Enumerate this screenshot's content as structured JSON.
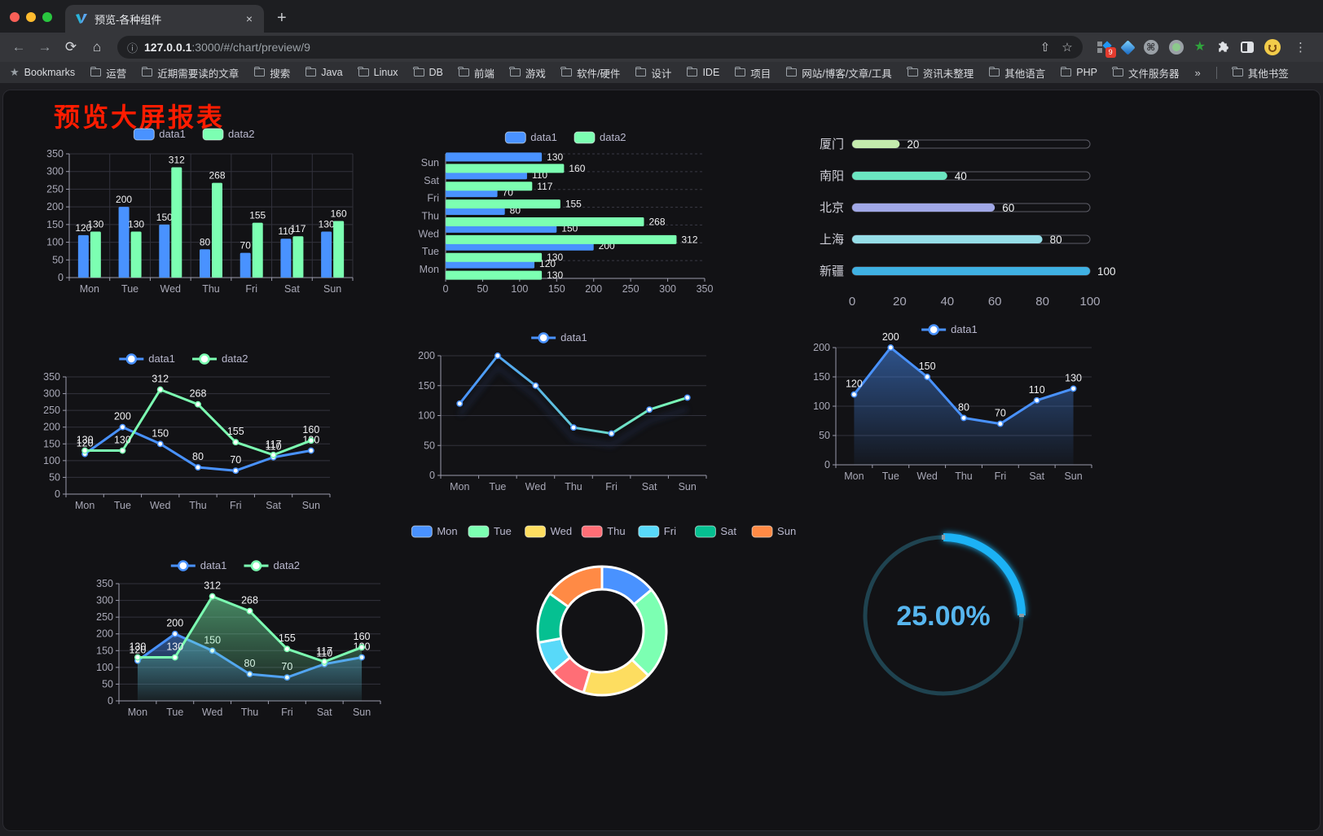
{
  "browser": {
    "tab": {
      "title": "预览-各种组件",
      "close": "×",
      "new_tab": "+"
    },
    "url": {
      "host": "127.0.0.1",
      "path": ":3000/#/chart/preview/9",
      "info_icon": "ⓘ"
    },
    "nav": {
      "back": "←",
      "forward": "→",
      "reload": "⟳",
      "home": "⌂",
      "share": "⇧",
      "star": "☆",
      "menu": "⋮"
    },
    "extensions_badge": "9",
    "bookmarks_label": "Bookmarks",
    "bookmarks": [
      "运营",
      "近期需要读的文章",
      "搜索",
      "Java",
      "Linux",
      "DB",
      "前端",
      "游戏",
      "软件/硬件",
      "设计",
      "IDE",
      "项目",
      "网站/博客/文章/工具",
      "资讯未整理",
      "其他语言",
      "PHP",
      "文件服务器"
    ],
    "overflow_chevron": "»",
    "other_bookmarks": "其他书签"
  },
  "page": {
    "title": "预览大屏报表"
  },
  "theme": {
    "axis": "#9b9bab",
    "grid": "#32323c",
    "tick_label": "#a8a8b6",
    "data_label": "#f0f0f2",
    "legend_text": "#b9b8ce",
    "blue": "#4992ff",
    "green": "#7cffb2"
  },
  "chart_data": [
    {
      "id": "bar-vertical",
      "type": "bar",
      "categories": [
        "Mon",
        "Tue",
        "Wed",
        "Thu",
        "Fri",
        "Sat",
        "Sun"
      ],
      "series": [
        {
          "name": "data1",
          "color": "#4992ff",
          "values": [
            120,
            200,
            150,
            80,
            70,
            110,
            130
          ]
        },
        {
          "name": "data2",
          "color": "#7cffb2",
          "values": [
            130,
            130,
            312,
            268,
            155,
            117,
            160
          ]
        }
      ],
      "ylim": [
        0,
        350
      ],
      "ystep": 50,
      "legend_position": "top",
      "grid": true
    },
    {
      "id": "bar-horizontal",
      "type": "hbar",
      "categories": [
        "Mon",
        "Tue",
        "Wed",
        "Thu",
        "Fri",
        "Sat",
        "Sun"
      ],
      "series": [
        {
          "name": "data1",
          "color": "#4992ff",
          "values": [
            120,
            200,
            150,
            80,
            70,
            110,
            130
          ]
        },
        {
          "name": "data2",
          "color": "#7cffb2",
          "values": [
            130,
            130,
            312,
            268,
            155,
            117,
            160
          ]
        }
      ],
      "xlim": [
        0,
        350
      ],
      "xstep": 50,
      "legend_position": "top"
    },
    {
      "id": "progress-bars",
      "type": "progress",
      "items": [
        {
          "label": "厦门",
          "value": 20,
          "color": "#c4ebad"
        },
        {
          "label": "南阳",
          "value": 40,
          "color": "#6be6c1"
        },
        {
          "label": "北京",
          "value": 60,
          "color": "#a0a7e6"
        },
        {
          "label": "上海",
          "value": 80,
          "color": "#96dee8"
        },
        {
          "label": "新疆",
          "value": 100,
          "color": "#3fb1e3"
        }
      ],
      "xticks": [
        0,
        20,
        40,
        60,
        80,
        100
      ],
      "xlim": [
        0,
        100
      ]
    },
    {
      "id": "line-two-series",
      "type": "line",
      "categories": [
        "Mon",
        "Tue",
        "Wed",
        "Thu",
        "Fri",
        "Sat",
        "Sun"
      ],
      "series": [
        {
          "name": "data1",
          "color": "#4992ff",
          "values": [
            120,
            200,
            150,
            80,
            70,
            110,
            130
          ]
        },
        {
          "name": "data2",
          "color": "#7cffb2",
          "values": [
            130,
            130,
            312,
            268,
            155,
            117,
            160
          ]
        }
      ],
      "ylim": [
        0,
        350
      ],
      "ystep": 50,
      "labels": true
    },
    {
      "id": "line-gradient",
      "type": "line",
      "categories": [
        "Mon",
        "Tue",
        "Wed",
        "Thu",
        "Fri",
        "Sat",
        "Sun"
      ],
      "series": [
        {
          "name": "data1",
          "color": "#4992ff",
          "gradient": [
            "#4992ff",
            "#7cffb2"
          ],
          "values": [
            120,
            200,
            150,
            80,
            70,
            110,
            130
          ]
        }
      ],
      "ylim": [
        0,
        200
      ],
      "ystep": 50,
      "labels": false,
      "shadow": true
    },
    {
      "id": "line-area",
      "type": "line",
      "categories": [
        "Mon",
        "Tue",
        "Wed",
        "Thu",
        "Fri",
        "Sat",
        "Sun"
      ],
      "series": [
        {
          "name": "data1",
          "color": "#4992ff",
          "area": true,
          "values": [
            120,
            200,
            150,
            80,
            70,
            110,
            130
          ]
        }
      ],
      "ylim": [
        0,
        200
      ],
      "ystep": 50,
      "labels": true
    },
    {
      "id": "line-two-area",
      "type": "line",
      "categories": [
        "Mon",
        "Tue",
        "Wed",
        "Thu",
        "Fri",
        "Sat",
        "Sun"
      ],
      "series": [
        {
          "name": "data1",
          "color": "#4992ff",
          "area": true,
          "values": [
            120,
            200,
            150,
            80,
            70,
            110,
            130
          ]
        },
        {
          "name": "data2",
          "color": "#7cffb2",
          "area": true,
          "values": [
            130,
            130,
            312,
            268,
            155,
            117,
            160
          ]
        }
      ],
      "ylim": [
        0,
        350
      ],
      "ystep": 50,
      "labels": true
    },
    {
      "id": "donut",
      "type": "pie",
      "categories": [
        "Mon",
        "Tue",
        "Wed",
        "Thu",
        "Fri",
        "Sat",
        "Sun"
      ],
      "values": [
        120,
        200,
        150,
        80,
        70,
        110,
        130
      ],
      "colors": [
        "#4992ff",
        "#7cffb2",
        "#fddd60",
        "#ff6e76",
        "#58d9f9",
        "#05c091",
        "#ff8a45"
      ],
      "inner_radius": 51,
      "outer_radius": 79,
      "legend_position": "top"
    },
    {
      "id": "gauge",
      "type": "gauge",
      "value": 25,
      "label": "25.00%",
      "color": "#1ab2f5",
      "track_color": "#1f4350",
      "text_color": "#57b6ef"
    }
  ]
}
